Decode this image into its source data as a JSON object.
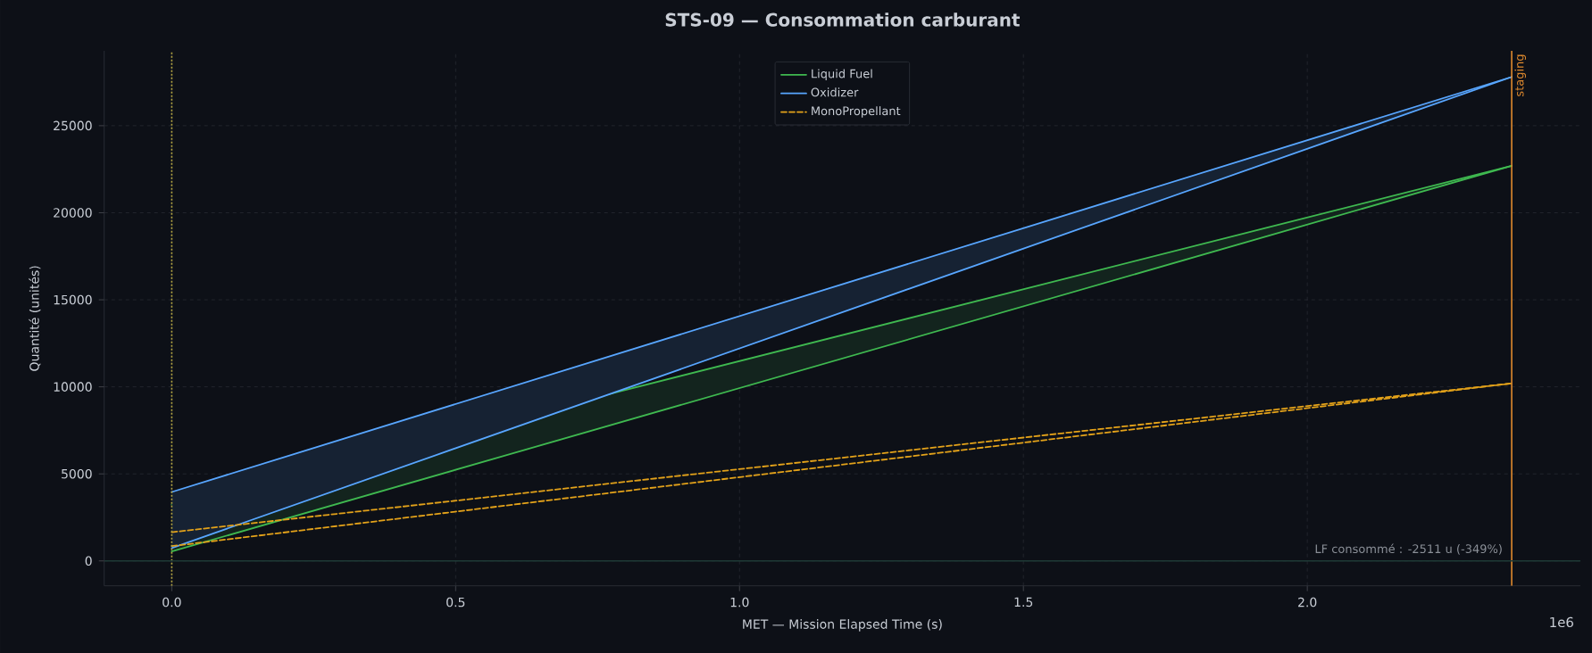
{
  "chart_data": {
    "type": "line",
    "title": "STS-09 — Consommation carburant",
    "xlabel": "MET — Mission Elapsed Time (s)",
    "ylabel": "Quantité (unités)",
    "series": [
      {
        "name": "Liquid Fuel",
        "color": "#3fb950",
        "line_style": "solid",
        "values": [
          3230,
          22700
        ],
        "lower": [
          540,
          22700
        ],
        "upper": [
          3230,
          22700
        ]
      },
      {
        "color": "#3fb950",
        "line_style": "solid",
        "values": [
          540,
          22700
        ]
      },
      {
        "name": "Oxidizer",
        "color": "#58a6ff",
        "line_style": "solid",
        "values": [
          3960,
          27800
        ],
        "lower": [
          740,
          27800
        ],
        "upper": [
          3960,
          27800
        ]
      },
      {
        "color": "#58a6ff",
        "line_style": "solid",
        "values": [
          740,
          27800
        ]
      },
      {
        "name": "MonoPropellant",
        "color": "#e3a21a",
        "line_style": "dashed",
        "values": [
          1650,
          10200
        ]
      },
      {
        "color": "#e3a21a",
        "line_style": "dashed",
        "values": [
          850,
          10200
        ]
      }
    ],
    "x": [
      0,
      2.36
    ],
    "xlim": [
      -0.119,
      2.481
    ],
    "ylim": [
      -1430,
      29300
    ],
    "xticks": [
      {
        "value": 0,
        "label": "0.0"
      },
      0.5,
      {
        "value": 1,
        "label": "1.0"
      },
      1.5,
      {
        "value": 2,
        "label": "2.0"
      }
    ],
    "yticks": [
      0,
      5000,
      10000,
      15000,
      20000,
      25000
    ],
    "ref_lines": [
      {
        "axis": "x",
        "value": 0,
        "color": "#b5a642",
        "line_style": "dotted"
      },
      {
        "axis": "x",
        "value": 2.36,
        "label": "staging",
        "color": "#e08a2e",
        "line_style": "solid"
      },
      {
        "axis": "y",
        "value": 0,
        "color": "#1e3a36",
        "line_style": "solid"
      }
    ],
    "annotations": [
      "LF consommé : -2511 u (-349%)",
      "1e6"
    ],
    "grid": true,
    "legend": "top"
  }
}
